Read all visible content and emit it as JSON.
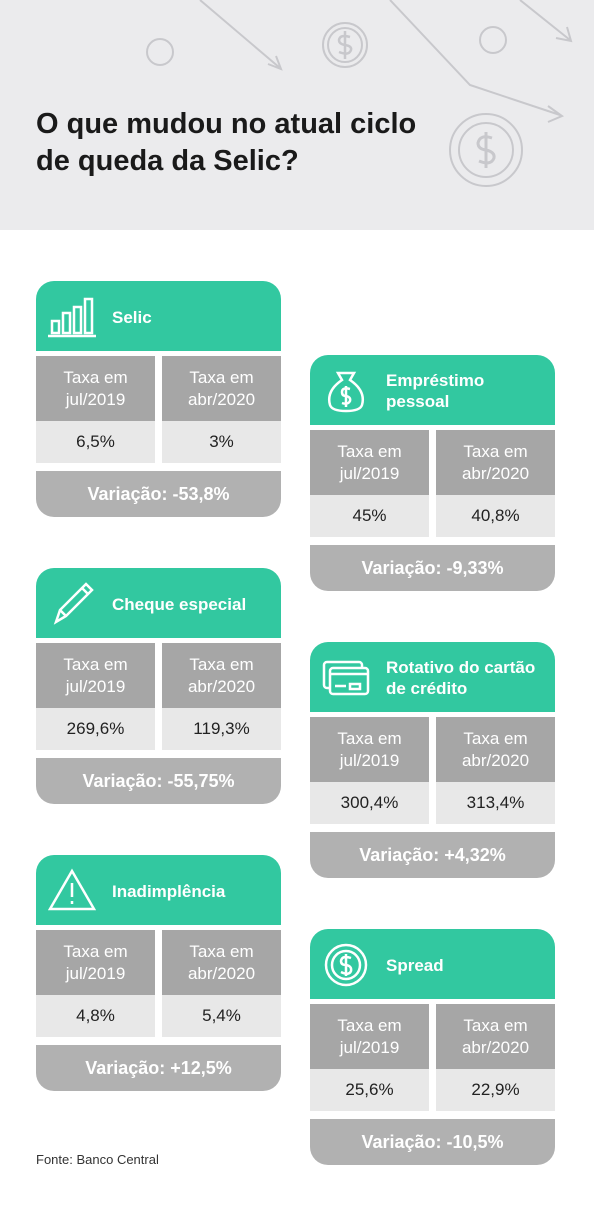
{
  "header": {
    "title": "O que mudou no atual ciclo de queda da Selic?"
  },
  "cards": [
    {
      "title": "Selic",
      "col_headers": [
        "Taxa em jul/2019",
        "Taxa em abr/2020"
      ],
      "values": [
        "6,5%",
        "3%"
      ],
      "variation": "Variação: -53,8%"
    },
    {
      "title": "Empréstimo pessoal",
      "col_headers": [
        "Taxa em jul/2019",
        "Taxa em abr/2020"
      ],
      "values": [
        "45%",
        "40,8%"
      ],
      "variation": "Variação: -9,33%"
    },
    {
      "title": "Cheque especial",
      "col_headers": [
        "Taxa em jul/2019",
        "Taxa em abr/2020"
      ],
      "values": [
        "269,6%",
        "119,3%"
      ],
      "variation": "Variação: -55,75%"
    },
    {
      "title": "Rotativo do cartão de crédito",
      "col_headers": [
        "Taxa em jul/2019",
        "Taxa em abr/2020"
      ],
      "values": [
        "300,4%",
        "313,4%"
      ],
      "variation": "Variação: +4,32%"
    },
    {
      "title": "Inadimplência",
      "col_headers": [
        "Taxa em jul/2019",
        "Taxa em abr/2020"
      ],
      "values": [
        "4,8%",
        "5,4%"
      ],
      "variation": "Variação: +12,5%"
    },
    {
      "title": "Spread",
      "col_headers": [
        "Taxa em jul/2019",
        "Taxa em abr/2020"
      ],
      "values": [
        "25,6%",
        "22,9%"
      ],
      "variation": "Variação: -10,5%"
    }
  ],
  "source": "Fonte: Banco Central"
}
